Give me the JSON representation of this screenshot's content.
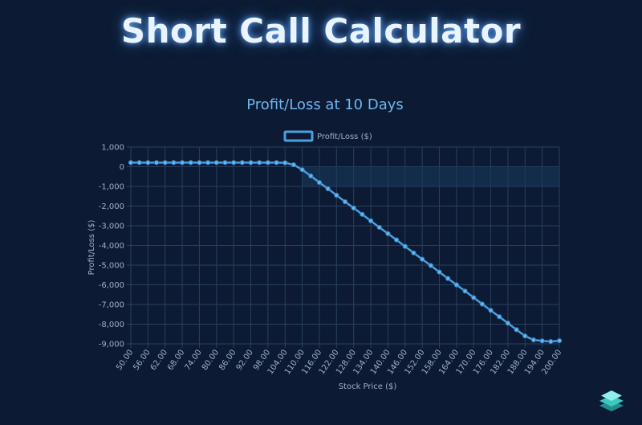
{
  "page": {
    "title": "Short Call Calculator"
  },
  "colors": {
    "background": "#0c1b33",
    "line": "#4a9fe0",
    "grid": "#27405f",
    "text": "#9bb0c8",
    "loss_band": "#1a3a5c"
  },
  "logo": {
    "icon": "stacked-layers-logo-icon"
  },
  "chart_data": {
    "type": "line",
    "title": "Profit/Loss at 10 Days",
    "xlabel": "Stock Price ($)",
    "ylabel": "Profit/Loss ($)",
    "legend": {
      "label": "Profit/Loss ($)",
      "position": "top-center"
    },
    "grid": true,
    "ylim": [
      -9000,
      1000
    ],
    "yticks": [
      1000,
      0,
      -1000,
      -2000,
      -3000,
      -4000,
      -5000,
      -6000,
      -7000,
      -8000,
      -9000
    ],
    "ytick_labels": [
      "1,000",
      "0",
      "-1,000",
      "-2,000",
      "-3,000",
      "-4,000",
      "-5,000",
      "-6,000",
      "-7,000",
      "-8,000",
      "-9,000"
    ],
    "xtick_labels": [
      "50.00",
      "56.00",
      "62.00",
      "68.00",
      "74.00",
      "80.00",
      "86.00",
      "92.00",
      "98.00",
      "104.00",
      "110.00",
      "116.00",
      "122.00",
      "128.00",
      "134.00",
      "140.00",
      "146.00",
      "152.00",
      "158.00",
      "164.00",
      "170.00",
      "176.00",
      "182.00",
      "188.00",
      "194.00",
      "200.00"
    ],
    "series": [
      {
        "name": "Profit/Loss ($)",
        "x": [
          50,
          53,
          56,
          59,
          62,
          65,
          68,
          71,
          74,
          77,
          80,
          83,
          86,
          89,
          92,
          95,
          98,
          101,
          104,
          107,
          110,
          113,
          116,
          119,
          122,
          125,
          128,
          131,
          134,
          137,
          140,
          143,
          146,
          149,
          152,
          155,
          158,
          161,
          164,
          167,
          170,
          173,
          176,
          179,
          182,
          185,
          188,
          191,
          194,
          197,
          200
        ],
        "values": [
          210,
          210,
          210,
          210,
          210,
          210,
          210,
          210,
          210,
          210,
          210,
          210,
          210,
          210,
          210,
          210,
          210,
          210,
          200,
          100,
          -150,
          -470,
          -800,
          -1120,
          -1450,
          -1780,
          -2100,
          -2420,
          -2750,
          -3080,
          -3400,
          -3720,
          -4050,
          -4380,
          -4700,
          -5020,
          -5350,
          -5680,
          -6000,
          -6320,
          -6650,
          -6980,
          -7300,
          -7620,
          -7950,
          -8280,
          -8600,
          -8800,
          -8850,
          -8880,
          -8840
        ]
      }
    ]
  }
}
